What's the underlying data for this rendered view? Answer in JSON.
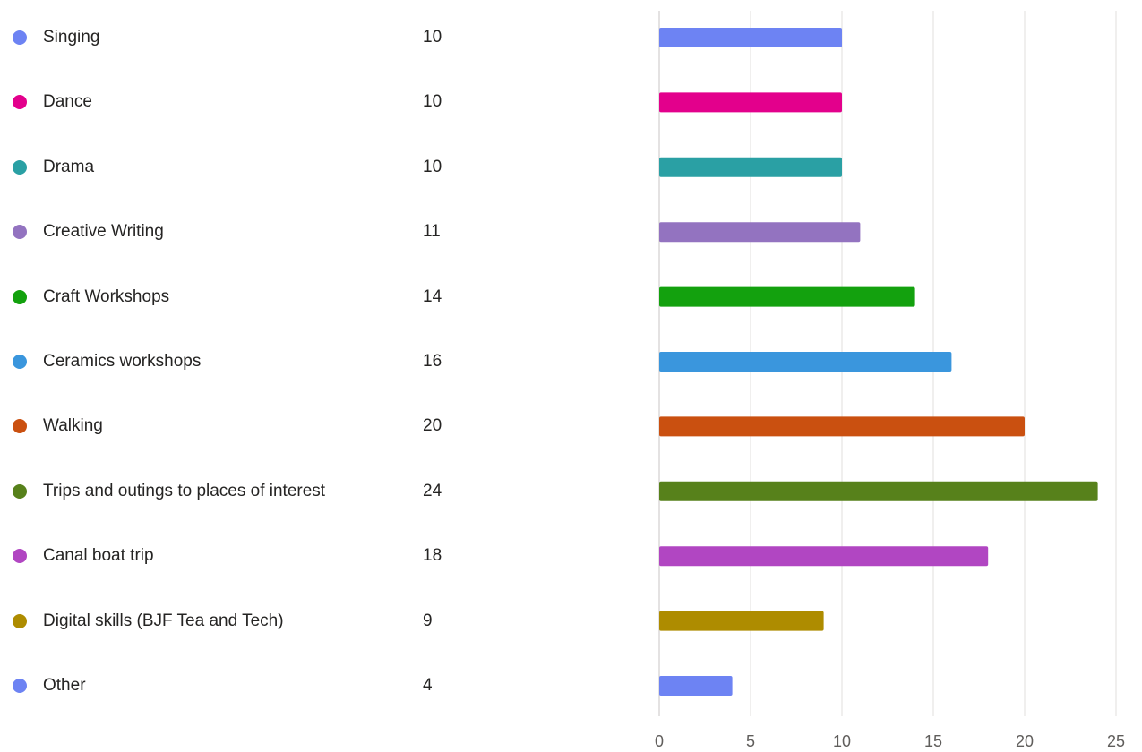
{
  "chart_data": {
    "type": "bar",
    "orientation": "horizontal",
    "categories": [
      "Singing",
      "Dance",
      "Drama",
      "Creative Writing",
      "Craft Workshops",
      "Ceramics workshops",
      "Walking",
      "Trips and outings to places of interest",
      "Canal boat trip",
      "Digital skills (BJF Tea and Tech)",
      "Other"
    ],
    "values": [
      10,
      10,
      10,
      11,
      14,
      16,
      20,
      24,
      18,
      9,
      4
    ],
    "colors": [
      "#6d83f3",
      "#e3008c",
      "#2aa0a4",
      "#9373c0",
      "#13a10e",
      "#3a96dd",
      "#ca5010",
      "#57811b",
      "#b146c2",
      "#ae8c00",
      "#6d83f3"
    ],
    "title": "",
    "xlabel": "",
    "ylabel": "",
    "xlim": [
      0,
      25
    ],
    "xticks": [
      0,
      5,
      10,
      15,
      20,
      25
    ],
    "grid": true,
    "legend": "left"
  }
}
